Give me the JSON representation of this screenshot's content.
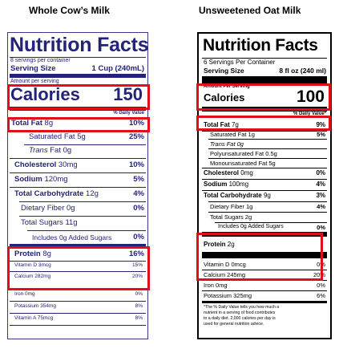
{
  "titles": {
    "left": "Whole Cow’s Milk",
    "right": "Unsweetened Oat Milk"
  },
  "left": {
    "header": "Nutrition Facts",
    "servings": "8 servings per container",
    "serving_size_label": "Serving Size",
    "serving_size_value": "1 Cup (240mL)",
    "amount_per_serving": "Amount per serving",
    "calories_label": "Calories",
    "calories_value": "150",
    "dv_header": "% Daily Value",
    "rows": {
      "total_fat": {
        "name": "Total Fat",
        "amount": "8g",
        "dv": "10%"
      },
      "sat_fat": {
        "name": "Saturated Fat",
        "amount": "5g",
        "dv": "25%"
      },
      "trans_fat": {
        "name": "Trans",
        "amount": "Fat 0g"
      },
      "cholesterol": {
        "name": "Cholesterol",
        "amount": "30mg",
        "dv": "10%"
      },
      "sodium": {
        "name": "Sodium",
        "amount": "120mg",
        "dv": "5%"
      },
      "carb": {
        "name": "Total Carbohydrate",
        "amount": "12g",
        "dv": "4%"
      },
      "fiber": {
        "name": "Dietary Fiber 0g",
        "dv": "0%"
      },
      "sugars": {
        "name": "Total Sugars 11g"
      },
      "added_sugars": {
        "name": "Includes 0g Added Sugars",
        "dv": "0%"
      },
      "protein": {
        "name": "Protein",
        "amount": "8g",
        "dv": "16%"
      },
      "vitd": {
        "name": "Vitamin D 3mcg",
        "dv": "15%"
      },
      "calcium": {
        "name": "Calcium 282mg",
        "dv": "20%"
      },
      "iron": {
        "name": "Iron 0mg",
        "dv": "0%"
      },
      "potassium": {
        "name": "Potassium 354mg",
        "dv": "8%"
      },
      "vita": {
        "name": "Vitamin A 75mcg",
        "dv": "8%"
      }
    }
  },
  "right": {
    "header": "Nutrition Facts",
    "servings": "6 Servings Per Container",
    "serving_size_label": "Serving Size",
    "serving_size_value": "8 fl oz (240 ml)",
    "amount_per_serving": "Amount Per Serving",
    "calories_label": "Calories",
    "calories_value": "100",
    "dv_header": "% Daily Value*",
    "rows": {
      "total_fat": {
        "name": "Total Fat",
        "amount": "7g",
        "dv": "9%"
      },
      "sat_fat": {
        "name": "Saturated Fat 1g",
        "dv": "5%"
      },
      "trans_fat": {
        "name": "Trans Fat 0g"
      },
      "poly_fat": {
        "name": "Polyunsaturated Fat 0.5g"
      },
      "mono_fat": {
        "name": "Monounsaturated Fat 5g"
      },
      "cholesterol": {
        "name": "Cholesterol",
        "amount": "0mg",
        "dv": "0%"
      },
      "sodium": {
        "name": "Sodium",
        "amount": "100mg",
        "dv": "4%"
      },
      "carb": {
        "name": "Total Carbohydrate",
        "amount": "9g",
        "dv": "3%"
      },
      "fiber": {
        "name": "Dietary Fiber 1g",
        "dv": "4%"
      },
      "sugars": {
        "name": "Total Sugars 2g"
      },
      "added_sugars": {
        "name": "Includes 0g Added Sugars",
        "dv": "0%"
      },
      "protein": {
        "name": "Protein",
        "amount": "2g"
      },
      "vitd": {
        "name": "Vitamin D 0mcg",
        "dv": "0%"
      },
      "calcium": {
        "name": "Calcium 245mg",
        "dv": "20%"
      },
      "iron": {
        "name": "Iron 0mg",
        "dv": "0%"
      },
      "potassium": {
        "name": "Potassium 325mg",
        "dv": "6%"
      }
    },
    "footnote": [
      "*The % Daily Value tells you how much a",
      "nutrient in a serving of food contributes",
      "to a daily diet. 2,000 calories per day is",
      "used for general nutrition advice."
    ]
  },
  "highlight_color": "#e0101a",
  "left_label_color": "#23237a"
}
